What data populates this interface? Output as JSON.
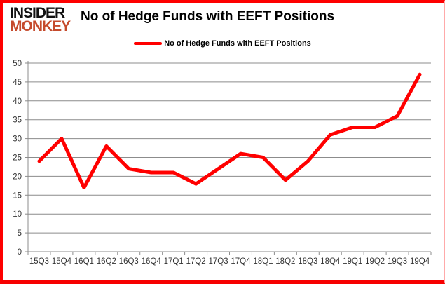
{
  "logo": {
    "line1": "INSIDER",
    "line2": "MONKEY"
  },
  "header": {
    "title": "No of Hedge Funds with EEFT Positions"
  },
  "legend": {
    "label": "No of Hedge Funds with EEFT Positions",
    "swatch_color": "#ff0000"
  },
  "chart_data": {
    "type": "line",
    "title": "No of Hedge Funds with EEFT Positions",
    "series_name": "No of Hedge Funds with EEFT Positions",
    "categories": [
      "15Q3",
      "15Q4",
      "16Q1",
      "16Q2",
      "16Q3",
      "16Q4",
      "17Q1",
      "17Q2",
      "17Q3",
      "17Q4",
      "18Q1",
      "18Q2",
      "18Q3",
      "18Q4",
      "19Q1",
      "19Q2",
      "19Q3",
      "19Q4"
    ],
    "values": [
      24,
      30,
      17,
      28,
      22,
      21,
      21,
      18,
      22,
      26,
      25,
      19,
      24,
      31,
      33,
      33,
      36,
      47
    ],
    "xlabel": "",
    "ylabel": "",
    "ylim": [
      0,
      50
    ],
    "ytick_step": 5,
    "grid": true,
    "legend_position": "top",
    "line_color": "#ff0000",
    "grid_color": "#8c8c8c",
    "axis_label_color": "#333333"
  }
}
